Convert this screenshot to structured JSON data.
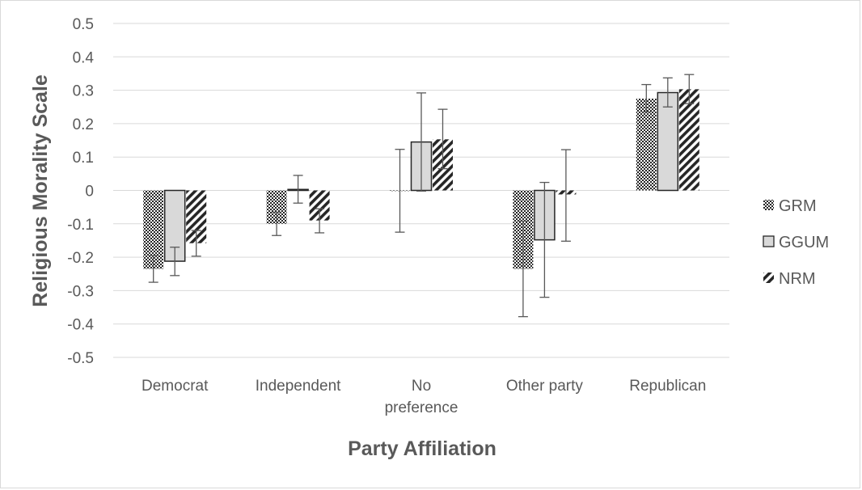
{
  "chart_data": {
    "type": "bar",
    "xlabel": "Party Affiliation",
    "ylabel": "Religious Morality Scale",
    "ylim": [
      -0.5,
      0.5
    ],
    "yticks": [
      0.5,
      0.4,
      0.3,
      0.2,
      0.1,
      0,
      -0.1,
      -0.2,
      -0.3,
      -0.4,
      -0.5
    ],
    "ytick_labels": [
      "0.5",
      "0.4",
      "0.3",
      "0.2",
      "0.1",
      "0",
      "-0.1",
      "-0.2",
      "-0.3",
      "-0.4",
      "-0.5"
    ],
    "grid": true,
    "legend_position": "right",
    "categories": [
      "Democrat",
      "Independent",
      "No preference",
      "Other party",
      "Republican"
    ],
    "category_labels": [
      [
        "Democrat"
      ],
      [
        "Independent"
      ],
      [
        "No",
        "preference"
      ],
      [
        "Other party"
      ],
      [
        "Republican"
      ]
    ],
    "series": [
      {
        "name": "GRM",
        "pattern": "checker",
        "values": [
          -0.235,
          -0.1,
          -0.002,
          -0.235,
          0.275
        ],
        "err_low": [
          -0.275,
          -0.135,
          -0.125,
          -0.378,
          0.235
        ],
        "err_high": [
          -0.195,
          -0.065,
          0.123,
          -0.092,
          0.317
        ]
      },
      {
        "name": "GGUM",
        "pattern": "solid",
        "values": [
          -0.212,
          0.003,
          0.145,
          -0.148,
          0.293
        ],
        "err_low": [
          -0.255,
          -0.038,
          -0.002,
          -0.32,
          0.25
        ],
        "err_high": [
          -0.17,
          0.045,
          0.292,
          0.024,
          0.337
        ]
      },
      {
        "name": "NRM",
        "pattern": "diagonal",
        "values": [
          -0.158,
          -0.09,
          0.153,
          -0.012,
          0.303
        ],
        "err_low": [
          -0.197,
          -0.127,
          0.065,
          -0.152,
          0.26
        ],
        "err_high": [
          -0.12,
          -0.055,
          0.243,
          0.122,
          0.347
        ]
      }
    ],
    "colors": {
      "grid": "#d9d9d9",
      "bar_edge": "#262626",
      "solid_fill": "#d9d9d9",
      "pattern_ink": "#262626",
      "text": "#595959"
    }
  }
}
